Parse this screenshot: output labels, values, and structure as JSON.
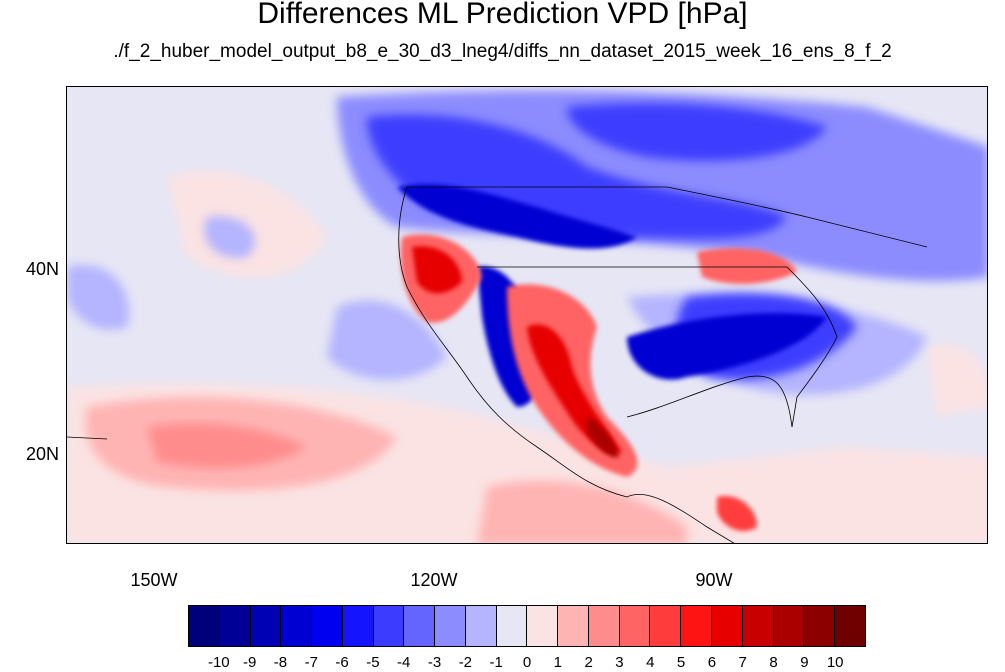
{
  "title": "Differences ML Prediction VPD [hPa]",
  "subtitle": "./f_2_huber_model_output_b8_e_30_d3_lneg4/diffs_nn_dataset_2015_week_16_ens_8_f_2",
  "lat_labels": [
    "40N",
    "20N"
  ],
  "lon_labels": [
    "150W",
    "120W",
    "90W"
  ],
  "colorbar": {
    "labels": [
      "-10",
      "-9",
      "-8",
      "-7",
      "-6",
      "-5",
      "-4",
      "-3",
      "-2",
      "-1",
      "0",
      "1",
      "2",
      "3",
      "4",
      "5",
      "6",
      "7",
      "8",
      "9",
      "10"
    ],
    "colors": [
      "#00007a",
      "#000096",
      "#0000b4",
      "#0000d2",
      "#0000f0",
      "#1414ff",
      "#3c3cff",
      "#6464ff",
      "#8c8cff",
      "#b4b4ff",
      "#e6e6f5",
      "#fbe3e3",
      "#ffb4b4",
      "#ff8c8c",
      "#ff6464",
      "#ff3c3c",
      "#ff1414",
      "#e60000",
      "#c80000",
      "#aa0000",
      "#8c0000",
      "#6e0000"
    ]
  }
}
